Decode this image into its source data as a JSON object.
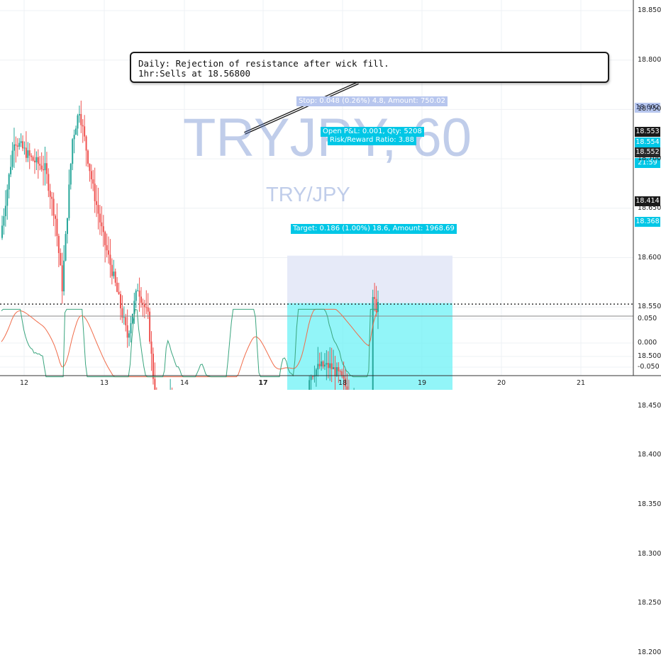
{
  "watermark": {
    "symbol_interval": "TRYJPY, 60",
    "pair": "TRY/JPY"
  },
  "annotation": {
    "line1": "Daily: Rejection of resistance after wick fill.",
    "line2": "1hr:Sells at 18.56800"
  },
  "position": {
    "stop_label": "Stop: 0.048 (0.26%) 4.8, Amount: 750.02",
    "open_label": "Open P&L: 0.001, Qty: 5208",
    "rr_label": "Risk/Reward Ratio: 3.88",
    "target_label": "Target: 0.186 (1.00%) 18.6, Amount: 1968.69"
  },
  "price_tags": {
    "last": "18.553",
    "open": "18.554",
    "close": "18.552",
    "countdown": "21:59",
    "stop": "18.602",
    "line": "18.414",
    "target": "18.368"
  },
  "colors": {
    "up": "#26a69a",
    "down": "#ef5350",
    "target_zone": "#6ef2f6",
    "stop_zone": "#e3e8f7",
    "osc_fast": "#3aa57e",
    "osc_slow": "#f06c4a"
  },
  "chart_data": {
    "type": "candlestick",
    "price_axis": {
      "ticks": [
        "18.850",
        "18.800",
        "18.750",
        "18.700",
        "18.650",
        "18.600",
        "18.550",
        "18.500",
        "18.450",
        "18.400",
        "18.350",
        "18.300",
        "18.250",
        "18.200"
      ],
      "range": [
        18.182,
        18.862
      ]
    },
    "time_axis": {
      "ticks": [
        {
          "label": "12",
          "bold": false
        },
        {
          "label": "13",
          "bold": false
        },
        {
          "label": "14",
          "bold": false
        },
        {
          "label": "17",
          "bold": true
        },
        {
          "label": "18",
          "bold": false
        },
        {
          "label": "19",
          "bold": false
        },
        {
          "label": "20",
          "bold": false
        },
        {
          "label": "21",
          "bold": false
        }
      ]
    },
    "levels": {
      "resistance_dotted": 18.553,
      "support_dashed": 18.414
    },
    "position": {
      "entry": 18.554,
      "stop": 18.602,
      "target": 18.368
    },
    "oscillator": {
      "ticks": [
        "0.050",
        "0.000",
        "-0.050"
      ],
      "range": [
        -0.07,
        0.07
      ]
    },
    "candle_count": 200
  }
}
